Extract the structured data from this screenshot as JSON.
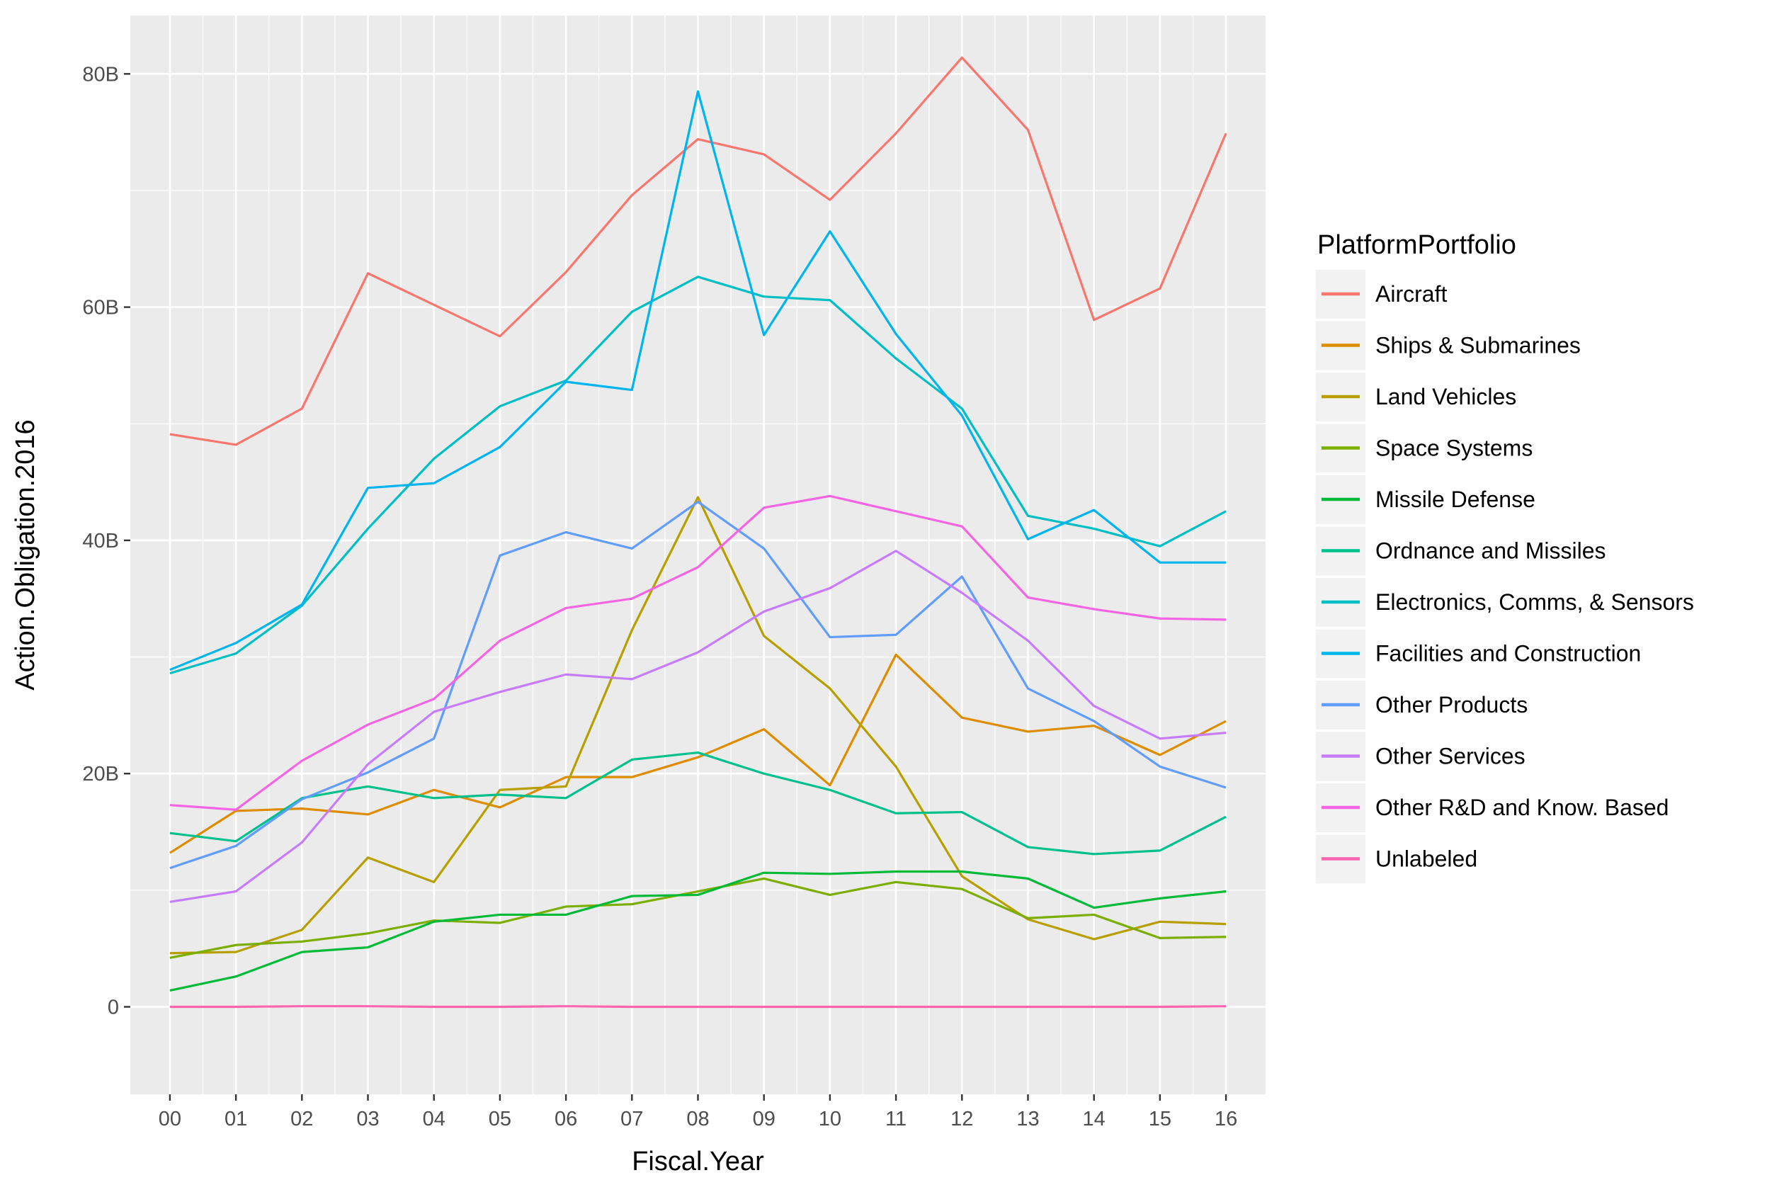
{
  "chart_data": {
    "type": "line",
    "title": "",
    "xlabel": "Fiscal.Year",
    "ylabel": "Action.Obligation.2016",
    "x": [
      "00",
      "01",
      "02",
      "03",
      "04",
      "05",
      "06",
      "07",
      "08",
      "09",
      "10",
      "11",
      "12",
      "13",
      "14",
      "15",
      "16"
    ],
    "ylim": [
      -7.5,
      85
    ],
    "yticks": [
      0,
      20,
      40,
      60,
      80
    ],
    "ytick_labels": [
      "0",
      "20B",
      "40B",
      "60B",
      "80B"
    ],
    "grid": true,
    "legend": {
      "title": "PlatformPortfolio",
      "position": "right"
    },
    "series": [
      {
        "name": "Aircraft",
        "color": "#F8766D",
        "values": [
          49.1,
          48.2,
          51.3,
          62.9,
          60.2,
          57.5,
          63.0,
          69.6,
          74.4,
          73.1,
          69.2,
          74.9,
          81.4,
          75.2,
          58.9,
          61.6,
          74.9
        ]
      },
      {
        "name": "Ships & Submarines",
        "color": "#DE8C00",
        "values": [
          13.2,
          16.8,
          17.0,
          16.5,
          18.6,
          17.1,
          19.7,
          19.7,
          21.4,
          23.8,
          19.0,
          30.2,
          24.8,
          23.6,
          24.1,
          21.6,
          24.5
        ]
      },
      {
        "name": "Land Vehicles",
        "color": "#B79F00",
        "values": [
          4.6,
          4.7,
          6.6,
          12.8,
          10.7,
          18.6,
          18.9,
          32.3,
          43.7,
          31.8,
          27.3,
          20.6,
          11.2,
          7.5,
          5.8,
          7.3,
          7.1
        ]
      },
      {
        "name": "Space Systems",
        "color": "#7CAE00",
        "values": [
          4.2,
          5.3,
          5.6,
          6.3,
          7.4,
          7.2,
          8.6,
          8.8,
          9.9,
          11.0,
          9.6,
          10.7,
          10.1,
          7.6,
          7.9,
          5.9,
          6.0
        ]
      },
      {
        "name": "Missile Defense",
        "color": "#00BA38",
        "values": [
          1.4,
          2.6,
          4.7,
          5.1,
          7.3,
          7.9,
          7.9,
          9.5,
          9.6,
          11.5,
          11.4,
          11.6,
          11.6,
          11.0,
          8.5,
          9.3,
          9.9
        ]
      },
      {
        "name": "Ordnance and Missiles",
        "color": "#00C08B",
        "values": [
          14.9,
          14.2,
          17.9,
          18.9,
          17.9,
          18.2,
          17.9,
          21.2,
          21.8,
          20.0,
          18.6,
          16.6,
          16.7,
          13.7,
          13.1,
          13.4,
          16.3
        ]
      },
      {
        "name": "Electronics, Comms, & Sensors",
        "color": "#00BFC4",
        "values": [
          28.6,
          30.3,
          34.4,
          41.0,
          47.0,
          51.5,
          53.7,
          59.6,
          62.6,
          60.9,
          60.6,
          55.6,
          51.3,
          42.1,
          41.0,
          39.5,
          42.5
        ]
      },
      {
        "name": "Facilities and Construction",
        "color": "#00B4F0",
        "values": [
          28.9,
          31.2,
          34.5,
          44.5,
          44.9,
          48.0,
          53.6,
          52.9,
          78.5,
          57.6,
          66.5,
          57.7,
          50.7,
          40.1,
          42.6,
          38.1,
          38.1
        ]
      },
      {
        "name": "Other Products",
        "color": "#619CFF",
        "values": [
          11.9,
          13.8,
          17.8,
          20.1,
          23.0,
          38.7,
          40.7,
          39.3,
          43.3,
          39.3,
          31.7,
          31.9,
          36.9,
          27.3,
          24.5,
          20.6,
          18.8
        ]
      },
      {
        "name": "Other Services",
        "color": "#C77CFF",
        "values": [
          9.0,
          9.9,
          14.1,
          20.8,
          25.3,
          27.0,
          28.5,
          28.1,
          30.4,
          33.9,
          35.9,
          39.1,
          35.5,
          31.4,
          25.8,
          23.0,
          23.5
        ]
      },
      {
        "name": "Other R&D and Know. Based",
        "color": "#F564E3",
        "values": [
          17.3,
          16.9,
          21.1,
          24.2,
          26.4,
          31.4,
          34.2,
          35.0,
          37.7,
          42.8,
          43.8,
          42.5,
          41.2,
          35.1,
          34.1,
          33.3,
          33.2
        ]
      },
      {
        "name": "Unlabeled",
        "color": "#FF64B0",
        "values": [
          0.0,
          0.0,
          0.05,
          0.05,
          0.0,
          0.0,
          0.05,
          0.0,
          0.0,
          0.0,
          0.0,
          0.0,
          0.0,
          0.0,
          0.0,
          0.0,
          0.05
        ]
      }
    ]
  }
}
